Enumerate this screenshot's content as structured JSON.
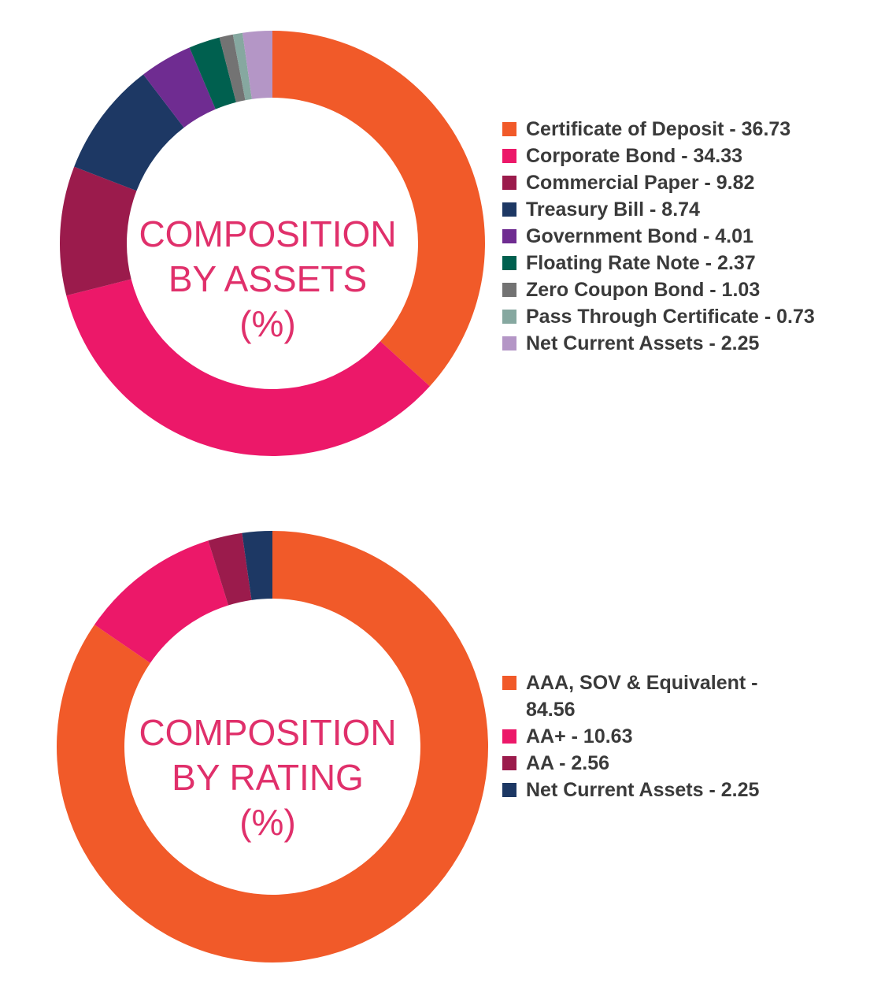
{
  "chart_data": [
    {
      "type": "pie",
      "title_lines": [
        "COMPOSITION",
        "BY ASSETS",
        "(%)"
      ],
      "series": [
        {
          "name": "Certificate of Deposit",
          "value": 36.73,
          "color": "#f15a29",
          "legend": "Certificate of Deposit - 36.73"
        },
        {
          "name": "Corporate Bond",
          "value": 34.33,
          "color": "#ec1869",
          "legend": "Corporate Bond - 34.33"
        },
        {
          "name": "Commercial Paper",
          "value": 9.82,
          "color": "#9b1b4c",
          "legend": "Commercial Paper - 9.82"
        },
        {
          "name": "Treasury Bill",
          "value": 8.74,
          "color": "#1d3864",
          "legend": "Treasury Bill - 8.74"
        },
        {
          "name": "Government Bond",
          "value": 4.01,
          "color": "#6f2c91",
          "legend": "Government Bond - 4.01"
        },
        {
          "name": "Floating Rate Note",
          "value": 2.37,
          "color": "#00604f",
          "legend": "Floating Rate Note - 2.37"
        },
        {
          "name": "Zero Coupon Bond",
          "value": 1.03,
          "color": "#737373",
          "legend": "Zero Coupon Bond - 1.03"
        },
        {
          "name": "Pass Through Certificate",
          "value": 0.73,
          "color": "#86a8a0",
          "legend": "Pass Through Certificate - 0.73"
        },
        {
          "name": "Net Current Assets",
          "value": 2.25,
          "color": "#b496c6",
          "legend": "Net Current Assets - 2.25"
        }
      ]
    },
    {
      "type": "pie",
      "title_lines": [
        "COMPOSITION",
        "BY RATING",
        "(%)"
      ],
      "series": [
        {
          "name": "AAA, SOV & Equivalent",
          "value": 84.56,
          "color": "#f15a29",
          "legend": "AAA, SOV & Equivalent - 84.56"
        },
        {
          "name": "AA+",
          "value": 10.63,
          "color": "#ec1869",
          "legend": "AA+ - 10.63"
        },
        {
          "name": "AA",
          "value": 2.56,
          "color": "#9b1b4c",
          "legend": "AA - 2.56"
        },
        {
          "name": "Net Current Assets",
          "value": 2.25,
          "color": "#1d3864",
          "legend": "Net Current Assets - 2.25"
        }
      ]
    }
  ]
}
